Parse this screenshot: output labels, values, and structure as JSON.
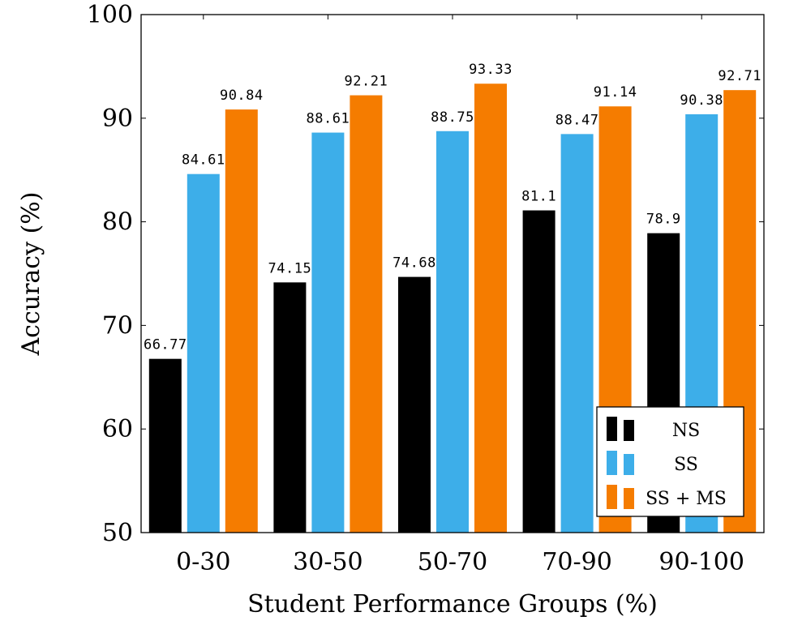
{
  "chart_data": {
    "type": "bar",
    "title": "",
    "xlabel": "Student Performance Groups (%)",
    "ylabel": "Accuracy (%)",
    "ylim": [
      50,
      100
    ],
    "yticks": [
      50,
      60,
      70,
      80,
      90,
      100
    ],
    "categories": [
      "0-30",
      "30-50",
      "50-70",
      "70-90",
      "90-100"
    ],
    "series": [
      {
        "name": "NS",
        "color": "#000000",
        "values": [
          66.77,
          74.15,
          74.68,
          81.1,
          78.9
        ],
        "labels": [
          "66.77",
          "74.15",
          "74.68",
          "81.1",
          "78.9"
        ]
      },
      {
        "name": "SS",
        "color": "#3daee9",
        "values": [
          84.61,
          88.61,
          88.75,
          88.47,
          90.38
        ],
        "labels": [
          "84.61",
          "88.61",
          "88.75",
          "88.47",
          "90.38"
        ]
      },
      {
        "name": "SS + MS",
        "color": "#f57c00",
        "values": [
          90.84,
          92.21,
          93.33,
          91.14,
          92.71
        ],
        "labels": [
          "90.84",
          "92.21",
          "93.33",
          "91.14",
          "92.71"
        ]
      }
    ],
    "legend_position": "bottom-right",
    "grid": false
  }
}
